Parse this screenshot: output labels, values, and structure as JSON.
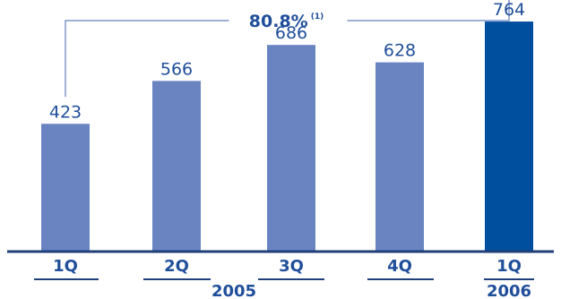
{
  "chart_data": {
    "type": "bar",
    "categories": [
      "1Q",
      "2Q",
      "3Q",
      "4Q",
      "1Q"
    ],
    "values": [
      423,
      566,
      686,
      628,
      764
    ],
    "value_labels": [
      "423",
      "566",
      "686",
      "628",
      "764"
    ],
    "years": [
      {
        "label": "2005",
        "categories": [
          "1Q",
          "2Q",
          "3Q",
          "4Q"
        ]
      },
      {
        "label": "2006",
        "categories": [
          "1Q"
        ]
      }
    ],
    "annotation": {
      "text": "80.8%",
      "superscript": "(1)",
      "from_index": 0,
      "to_index": 4
    },
    "ylim": [
      0,
      800
    ],
    "grid": false,
    "colors": {
      "bar": "#6a84c2",
      "highlight_bar": "#004f9f",
      "text": "#1f4e9a",
      "axis": "#1f3f7a",
      "bracket": "#7f95cc"
    }
  }
}
